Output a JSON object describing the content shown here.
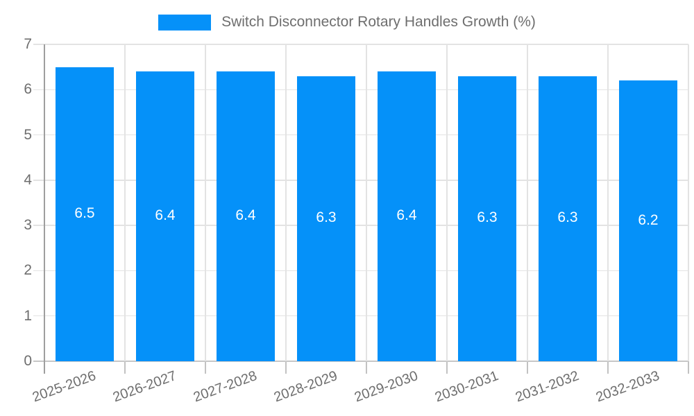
{
  "legend": {
    "label": "Switch Disconnector Rotary Handles Growth (%)"
  },
  "chart_data": {
    "type": "bar",
    "title": "Switch Disconnector Rotary Handles Growth (%)",
    "categories": [
      "2025-2026",
      "2026-2027",
      "2027-2028",
      "2028-2029",
      "2029-2030",
      "2030-2031",
      "2031-2032",
      "2032-2033"
    ],
    "values": [
      6.5,
      6.4,
      6.4,
      6.3,
      6.4,
      6.3,
      6.3,
      6.2
    ],
    "value_labels": [
      "6.5",
      "6.4",
      "6.4",
      "6.3",
      "6.4",
      "6.3",
      "6.3",
      "6.2"
    ],
    "xlabel": "",
    "ylabel": "",
    "ylim": [
      0,
      7
    ],
    "yticks": [
      0,
      1,
      2,
      3,
      4,
      5,
      6,
      7
    ],
    "grid": true,
    "legend_position": "top",
    "colors": {
      "bar": "#0591f9",
      "value_label": "#ffffff",
      "axis_text": "#6e6e6e",
      "gridline": "#e3e3e3",
      "y_axis_line": "#9e9e9e",
      "baseline": "#c6c6c6",
      "tick": "#c2c2c2"
    }
  }
}
